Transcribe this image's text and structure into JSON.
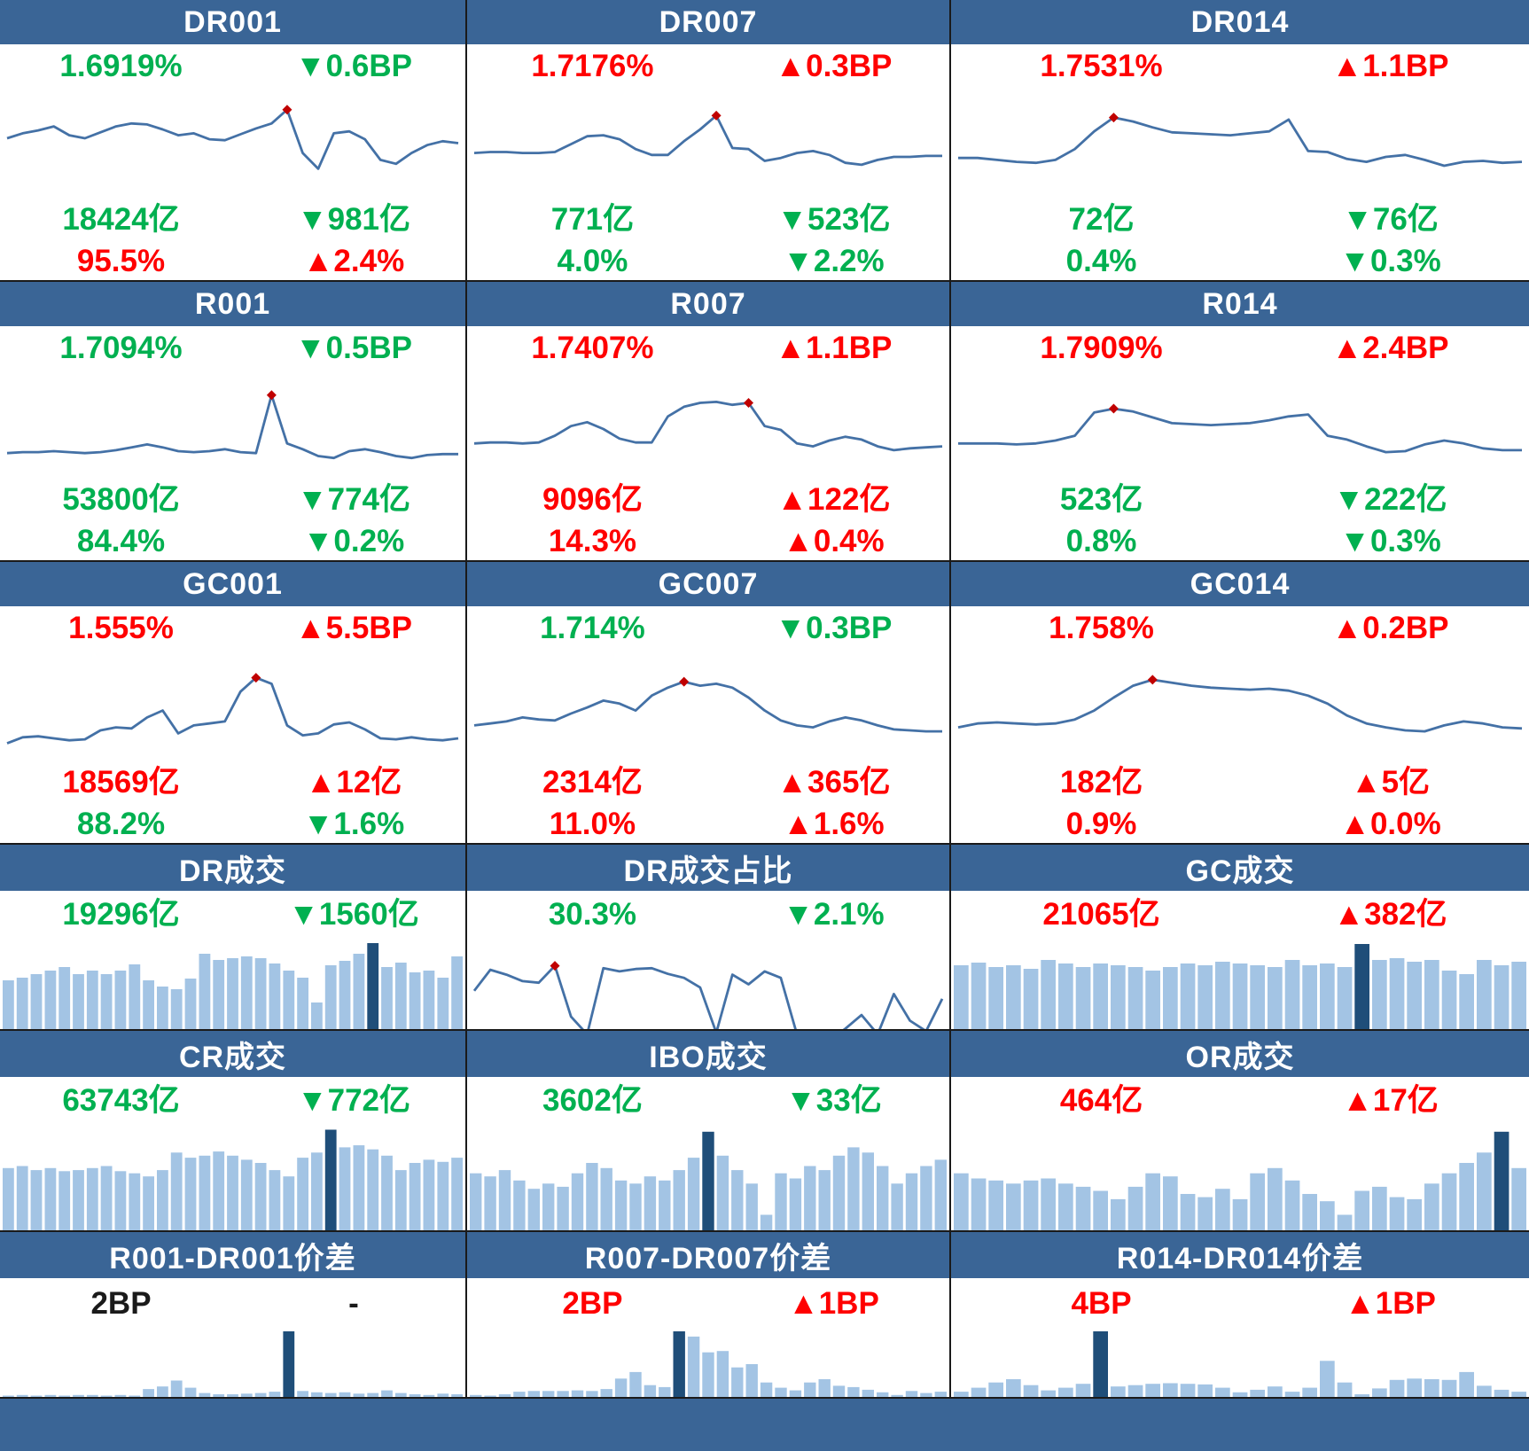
{
  "colors": {
    "header_bg": "#3A6596",
    "footer_bg": "#3A6596",
    "border": "#1A1A1A",
    "line": "#4471A6",
    "marker": "#C00000",
    "bar_light": "#A3C4E4",
    "bar_dark": "#1F4E79",
    "up_red": "#FF0000",
    "down_green": "#00B050",
    "neutral": "#1A1A1A"
  },
  "chart_data": [
    {
      "type": "line",
      "title": "DR001",
      "rate": {
        "value": "1.6919%",
        "change": "▼0.6BP",
        "color": "#00B050"
      },
      "volume": {
        "value": "18424亿",
        "change": "▼981亿",
        "color": "#00B050"
      },
      "share": {
        "value": "95.5%",
        "change": "▲2.4%",
        "color": "#FF0000"
      },
      "values": [
        55,
        60,
        63,
        67,
        58,
        55,
        61,
        67,
        70,
        69,
        64,
        58,
        60,
        54,
        53,
        59,
        65,
        70,
        84,
        40,
        24,
        60,
        62,
        54,
        33,
        29,
        40,
        48,
        52,
        50
      ],
      "marker_index": 18
    },
    {
      "type": "line",
      "title": "DR007",
      "rate": {
        "value": "1.7176%",
        "change": "▲0.3BP",
        "color": "#FF0000"
      },
      "volume": {
        "value": "771亿",
        "change": "▼523亿",
        "color": "#00B050"
      },
      "share": {
        "value": "4.0%",
        "change": "▼2.2%",
        "color": "#00B050"
      },
      "values": [
        40,
        41,
        41,
        40,
        40,
        41,
        49,
        57,
        58,
        54,
        44,
        38,
        38,
        52,
        64,
        78,
        45,
        44,
        32,
        35,
        40,
        42,
        38,
        30,
        28,
        33,
        36,
        36,
        37,
        37
      ],
      "marker_index": 15
    },
    {
      "type": "line",
      "title": "DR014",
      "rate": {
        "value": "1.7531%",
        "change": "▲1.1BP",
        "color": "#FF0000"
      },
      "volume": {
        "value": "72亿",
        "change": "▼76亿",
        "color": "#00B050"
      },
      "share": {
        "value": "0.4%",
        "change": "▼0.3%",
        "color": "#00B050"
      },
      "values": [
        35,
        35,
        33,
        31,
        30,
        33,
        44,
        62,
        76,
        72,
        66,
        61,
        60,
        59,
        58,
        60,
        62,
        74,
        42,
        41,
        34,
        31,
        36,
        38,
        33,
        27,
        31,
        32,
        30,
        31
      ],
      "marker_index": 8
    },
    {
      "type": "line",
      "title": "R001",
      "rate": {
        "value": "1.7094%",
        "change": "▼0.5BP",
        "color": "#00B050"
      },
      "volume": {
        "value": "53800亿",
        "change": "▼774亿",
        "color": "#00B050"
      },
      "share": {
        "value": "84.4%",
        "change": "▼0.2%",
        "color": "#00B050"
      },
      "values": [
        20,
        21,
        21,
        22,
        21,
        20,
        21,
        23,
        26,
        29,
        26,
        22,
        21,
        22,
        24,
        21,
        20,
        80,
        30,
        24,
        17,
        15,
        22,
        24,
        21,
        17,
        15,
        18,
        19,
        19
      ],
      "marker_index": 17
    },
    {
      "type": "line",
      "title": "R007",
      "rate": {
        "value": "1.7407%",
        "change": "▲1.1BP",
        "color": "#FF0000"
      },
      "volume": {
        "value": "9096亿",
        "change": "▲122亿",
        "color": "#FF0000"
      },
      "share": {
        "value": "14.3%",
        "change": "▲0.4%",
        "color": "#FF0000"
      },
      "values": [
        30,
        31,
        31,
        30,
        31,
        38,
        48,
        52,
        45,
        35,
        31,
        31,
        58,
        68,
        72,
        73,
        70,
        72,
        48,
        44,
        30,
        27,
        33,
        37,
        34,
        27,
        23,
        25,
        26,
        27
      ],
      "marker_index": 17
    },
    {
      "type": "line",
      "title": "R014",
      "rate": {
        "value": "1.7909%",
        "change": "▲2.4BP",
        "color": "#FF0000"
      },
      "volume": {
        "value": "523亿",
        "change": "▼222亿",
        "color": "#00B050"
      },
      "share": {
        "value": "0.8%",
        "change": "▼0.3%",
        "color": "#00B050"
      },
      "values": [
        30,
        30,
        30,
        29,
        30,
        33,
        38,
        62,
        66,
        63,
        57,
        51,
        50,
        49,
        50,
        51,
        54,
        58,
        60,
        38,
        34,
        27,
        21,
        22,
        29,
        33,
        30,
        25,
        23,
        23
      ],
      "marker_index": 8
    },
    {
      "type": "line",
      "title": "GC001",
      "rate": {
        "value": "1.555%",
        "change": "▲5.5BP",
        "color": "#FF0000"
      },
      "volume": {
        "value": "18569亿",
        "change": "▲12亿",
        "color": "#FF0000"
      },
      "share": {
        "value": "88.2%",
        "change": "▼1.6%",
        "color": "#00B050"
      },
      "values": [
        12,
        18,
        19,
        17,
        15,
        16,
        25,
        28,
        27,
        38,
        45,
        22,
        30,
        32,
        34,
        64,
        78,
        72,
        30,
        20,
        22,
        31,
        33,
        26,
        17,
        16,
        18,
        16,
        15,
        17
      ],
      "marker_index": 16
    },
    {
      "type": "line",
      "title": "GC007",
      "rate": {
        "value": "1.714%",
        "change": "▼0.3BP",
        "color": "#00B050"
      },
      "volume": {
        "value": "2314亿",
        "change": "▲365亿",
        "color": "#FF0000"
      },
      "share": {
        "value": "11.0%",
        "change": "▲1.6%",
        "color": "#FF0000"
      },
      "values": [
        30,
        32,
        34,
        38,
        36,
        35,
        42,
        48,
        55,
        52,
        45,
        60,
        68,
        74,
        70,
        72,
        68,
        58,
        45,
        35,
        30,
        28,
        34,
        38,
        35,
        30,
        26,
        25,
        24,
        24
      ],
      "marker_index": 13
    },
    {
      "type": "line",
      "title": "GC014",
      "rate": {
        "value": "1.758%",
        "change": "▲0.2BP",
        "color": "#FF0000"
      },
      "volume": {
        "value": "182亿",
        "change": "▲5亿",
        "color": "#FF0000"
      },
      "share": {
        "value": "0.9%",
        "change": "▲0.0%",
        "color": "#FF0000"
      },
      "values": [
        28,
        32,
        33,
        32,
        31,
        32,
        36,
        45,
        58,
        70,
        76,
        73,
        70,
        68,
        67,
        66,
        67,
        65,
        60,
        52,
        40,
        32,
        28,
        25,
        24,
        30,
        34,
        32,
        28,
        27
      ],
      "marker_index": 10
    },
    {
      "type": "bar",
      "title": "DR成交",
      "total": {
        "value": "19296亿",
        "change": "▼1560亿",
        "color": "#00B050"
      },
      "values": [
        55,
        58,
        62,
        66,
        70,
        62,
        66,
        62,
        66,
        73,
        55,
        48,
        45,
        57,
        85,
        78,
        80,
        82,
        80,
        74,
        66,
        58,
        30,
        72,
        77,
        85,
        97,
        70,
        75,
        64,
        66,
        58,
        82
      ],
      "highlight_index": 26
    },
    {
      "type": "line",
      "title": "DR成交占比",
      "total": {
        "value": "30.3%",
        "change": "▼2.1%",
        "color": "#00B050"
      },
      "values": [
        42,
        68,
        62,
        54,
        52,
        73,
        10,
        -12,
        70,
        66,
        69,
        70,
        63,
        58,
        46,
        -10,
        62,
        50,
        66,
        58,
        -12,
        -22,
        -20,
        -5,
        12,
        -12,
        38,
        5,
        -8,
        32
      ],
      "marker_index": 5
    },
    {
      "type": "bar",
      "title": "GC成交",
      "total": {
        "value": "21065亿",
        "change": "▲382亿",
        "color": "#FF0000"
      },
      "values": [
        72,
        75,
        70,
        72,
        68,
        78,
        74,
        70,
        74,
        72,
        70,
        66,
        70,
        74,
        72,
        76,
        74,
        72,
        70,
        78,
        72,
        74,
        70,
        96,
        78,
        80,
        76,
        78,
        66,
        62,
        78,
        72,
        76
      ],
      "highlight_index": 23
    },
    {
      "type": "bar",
      "title": "CR成交",
      "total": {
        "value": "63743亿",
        "change": "▼772亿",
        "color": "#00B050"
      },
      "values": [
        60,
        62,
        58,
        60,
        57,
        58,
        60,
        62,
        57,
        55,
        52,
        58,
        75,
        70,
        72,
        76,
        72,
        68,
        65,
        58,
        52,
        70,
        75,
        97,
        80,
        82,
        78,
        72,
        58,
        65,
        68,
        66,
        70
      ],
      "highlight_index": 23
    },
    {
      "type": "bar",
      "title": "IBO成交",
      "total": {
        "value": "3602亿",
        "change": "▼33亿",
        "color": "#00B050"
      },
      "values": [
        55,
        52,
        58,
        48,
        40,
        45,
        42,
        55,
        65,
        60,
        48,
        45,
        52,
        48,
        58,
        70,
        95,
        72,
        58,
        45,
        15,
        55,
        50,
        62,
        58,
        72,
        80,
        75,
        62,
        45,
        55,
        62,
        68
      ],
      "highlight_index": 16
    },
    {
      "type": "bar",
      "title": "OR成交",
      "total": {
        "value": "464亿",
        "change": "▲17亿",
        "color": "#FF0000"
      },
      "values": [
        55,
        50,
        48,
        45,
        48,
        50,
        45,
        42,
        38,
        30,
        42,
        55,
        52,
        35,
        32,
        40,
        30,
        55,
        60,
        48,
        35,
        28,
        15,
        38,
        42,
        32,
        30,
        45,
        55,
        65,
        75,
        95,
        60
      ],
      "highlight_index": 31
    },
    {
      "type": "bar",
      "title": "R001-DR001价差",
      "total": {
        "value": "2BP",
        "change": "-",
        "color": "#1A1A1A"
      },
      "values": [
        2,
        3,
        2,
        3,
        2,
        3,
        3,
        2,
        3,
        2,
        12,
        16,
        25,
        14,
        6,
        4,
        4,
        5,
        6,
        8,
        100,
        9,
        7,
        6,
        7,
        5,
        6,
        10,
        6,
        4,
        3,
        5,
        4
      ],
      "highlight_index": 20
    },
    {
      "type": "bar",
      "title": "R007-DR007价差",
      "total": {
        "value": "2BP",
        "change": "▲1BP",
        "color": "#FF0000"
      },
      "values": [
        3,
        2,
        4,
        8,
        9,
        9,
        9,
        10,
        9,
        12,
        28,
        38,
        18,
        15,
        100,
        92,
        68,
        70,
        45,
        50,
        22,
        14,
        10,
        22,
        27,
        17,
        15,
        11,
        7,
        3,
        9,
        6,
        8
      ],
      "highlight_index": 14
    },
    {
      "type": "bar",
      "title": "R014-DR014价差",
      "total": {
        "value": "4BP",
        "change": "▲1BP",
        "color": "#FF0000"
      },
      "values": [
        8,
        14,
        22,
        27,
        18,
        10,
        14,
        20,
        100,
        16,
        18,
        20,
        21,
        20,
        19,
        14,
        7,
        11,
        16,
        8,
        14,
        55,
        22,
        4,
        13,
        26,
        28,
        27,
        26,
        38,
        17,
        11,
        8
      ],
      "highlight_index": 8
    }
  ]
}
